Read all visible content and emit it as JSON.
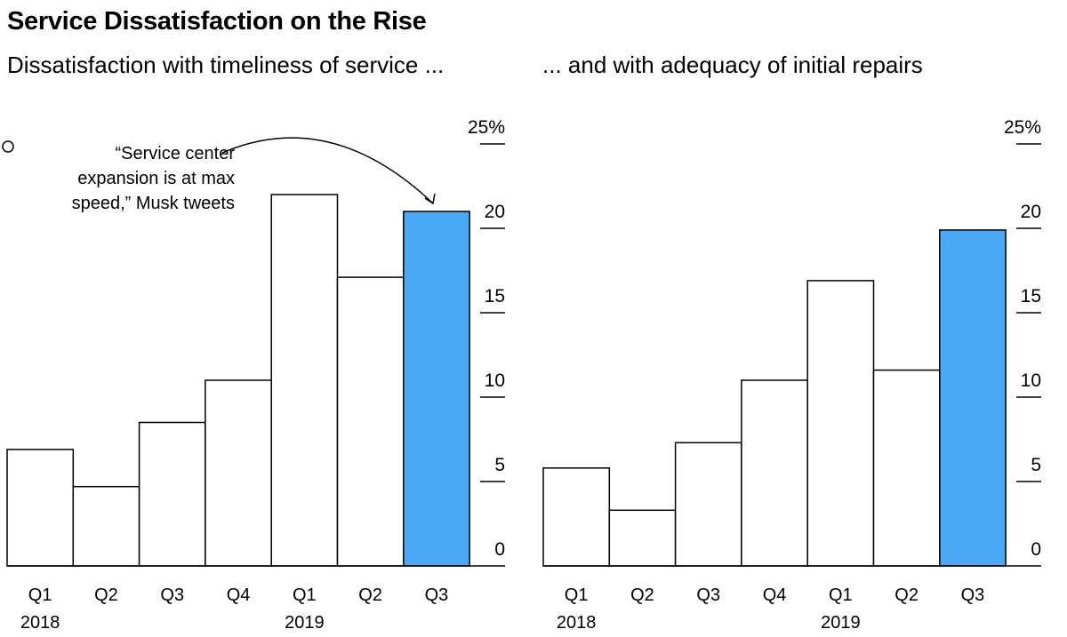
{
  "title": "Service Dissatisfaction on the Rise",
  "colors": {
    "highlight": "#4aa8f7",
    "bar": "#ffffff",
    "stroke": "#000000"
  },
  "chart_data": [
    {
      "type": "bar",
      "subtitle": "Dissatisfaction with timeliness of service ...",
      "categories": [
        "Q1",
        "Q2",
        "Q3",
        "Q4",
        "Q1",
        "Q2",
        "Q3"
      ],
      "year_labels": [
        "2018",
        "",
        "",
        "",
        "2019",
        "",
        ""
      ],
      "values": [
        6.9,
        4.7,
        8.5,
        11.0,
        22.0,
        17.1,
        21.0
      ],
      "highlight_index": 6,
      "ylim": [
        0,
        25
      ],
      "yticks": [
        "0",
        "5",
        "10",
        "15",
        "20",
        "25%"
      ],
      "annotation": [
        "“Service center",
        "expansion is at max",
        "speed,” Musk tweets"
      ]
    },
    {
      "type": "bar",
      "subtitle": "... and with adequacy of initial repairs",
      "categories": [
        "Q1",
        "Q2",
        "Q3",
        "Q4",
        "Q1",
        "Q2",
        "Q3"
      ],
      "year_labels": [
        "2018",
        "",
        "",
        "",
        "2019",
        "",
        ""
      ],
      "values": [
        5.8,
        3.3,
        7.3,
        11.0,
        16.9,
        11.6,
        19.9
      ],
      "highlight_index": 6,
      "ylim": [
        0,
        25
      ],
      "yticks": [
        "0",
        "5",
        "10",
        "15",
        "20",
        "25%"
      ]
    }
  ]
}
